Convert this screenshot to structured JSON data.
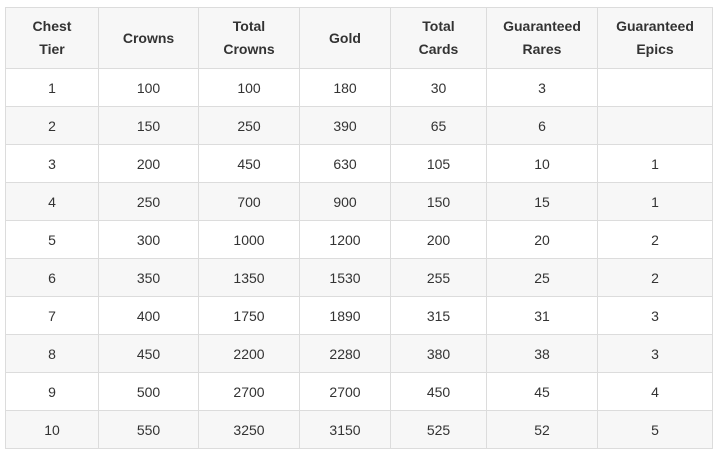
{
  "table": {
    "headers": [
      [
        "Chest",
        "Tier"
      ],
      [
        "Crowns"
      ],
      [
        "Total",
        "Crowns"
      ],
      [
        "Gold"
      ],
      [
        "Total",
        "Cards"
      ],
      [
        "Guaranteed",
        "Rares"
      ],
      [
        "Guaranteed",
        "Epics"
      ]
    ],
    "rows": [
      [
        "1",
        "100",
        "100",
        "180",
        "30",
        "3",
        ""
      ],
      [
        "2",
        "150",
        "250",
        "390",
        "65",
        "6",
        ""
      ],
      [
        "3",
        "200",
        "450",
        "630",
        "105",
        "10",
        "1"
      ],
      [
        "4",
        "250",
        "700",
        "900",
        "150",
        "15",
        "1"
      ],
      [
        "5",
        "300",
        "1000",
        "1200",
        "200",
        "20",
        "2"
      ],
      [
        "6",
        "350",
        "1350",
        "1530",
        "255",
        "25",
        "2"
      ],
      [
        "7",
        "400",
        "1750",
        "1890",
        "315",
        "31",
        "3"
      ],
      [
        "8",
        "450",
        "2200",
        "2280",
        "380",
        "38",
        "3"
      ],
      [
        "9",
        "500",
        "2700",
        "2700",
        "450",
        "45",
        "4"
      ],
      [
        "10",
        "550",
        "3250",
        "3150",
        "525",
        "52",
        "5"
      ]
    ]
  }
}
